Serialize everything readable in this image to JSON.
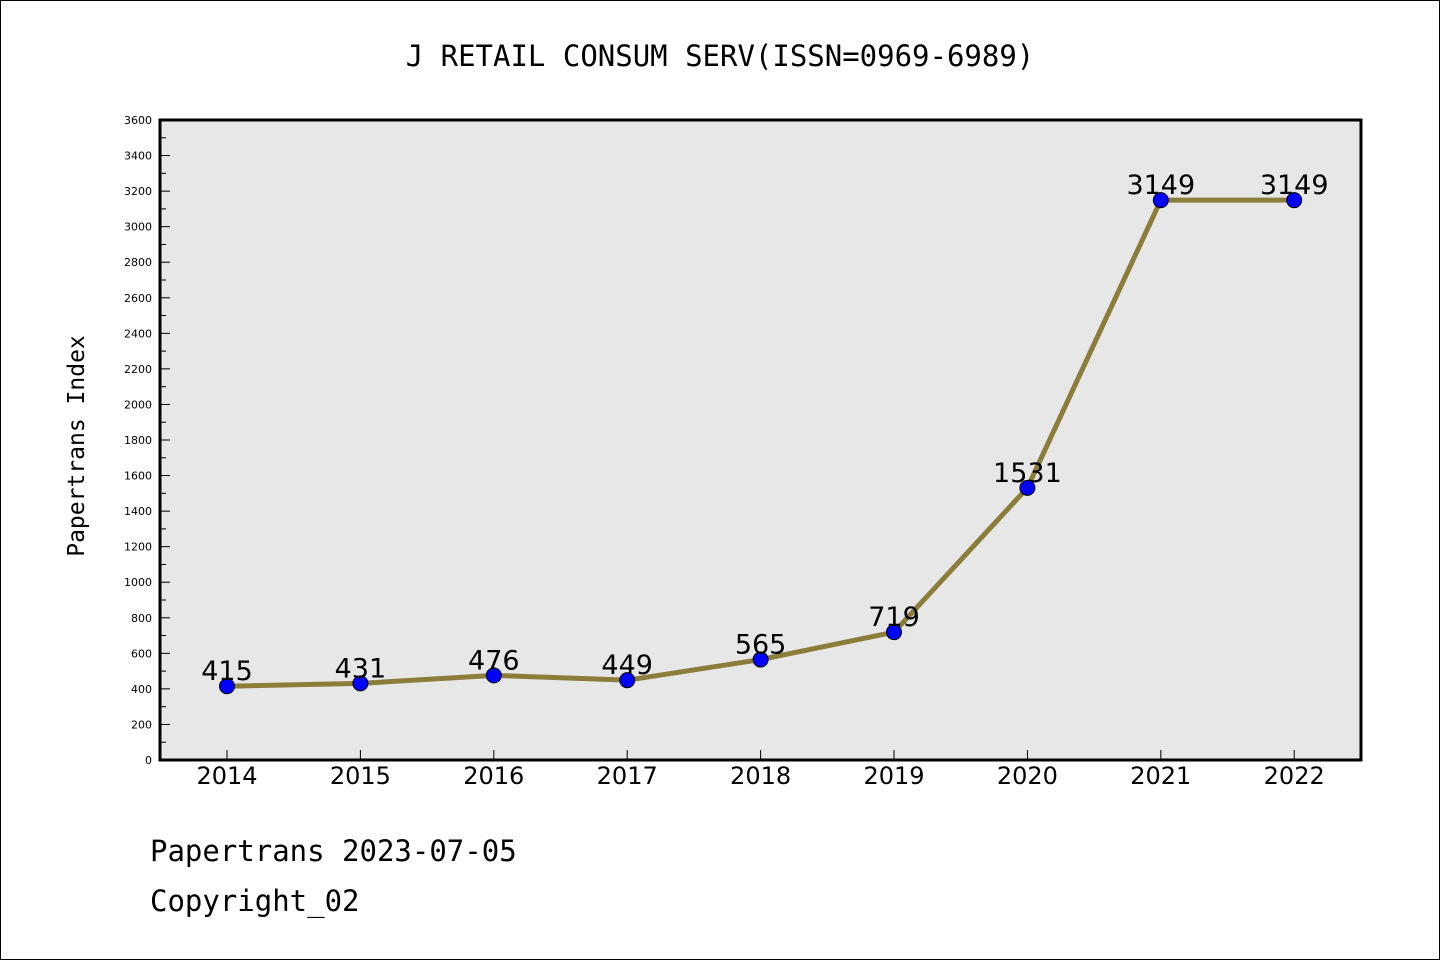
{
  "chart_data": {
    "type": "line",
    "title": "J RETAIL CONSUM SERV(ISSN=0969-6989)",
    "xlabel": "",
    "ylabel": "Papertrans Index",
    "categories": [
      "2014",
      "2015",
      "2016",
      "2017",
      "2018",
      "2019",
      "2020",
      "2021",
      "2022"
    ],
    "values": [
      415,
      431,
      476,
      449,
      565,
      719,
      1531,
      3149,
      3149
    ],
    "data_labels": [
      "415",
      "431",
      "476",
      "449",
      "565",
      "719",
      "1531",
      "3149",
      "3149"
    ],
    "ylim": [
      0,
      3600
    ],
    "y_ticks": [
      0,
      200,
      400,
      600,
      800,
      1000,
      1200,
      1400,
      1600,
      1800,
      2000,
      2200,
      2400,
      2600,
      2800,
      3000,
      3200,
      3400,
      3600
    ],
    "y_tick_labels": [
      "0",
      "200",
      "400",
      "600",
      "800",
      "1000",
      "1200",
      "1400",
      "1600",
      "1800",
      "2000",
      "2200",
      "2400",
      "2600",
      "2800",
      "3000",
      "3200",
      "3400",
      "3600"
    ],
    "grid": false,
    "legend": "none",
    "colors": {
      "line": "#8b7d3a",
      "marker": "#0000ff",
      "plot_background": "#e7e7e7"
    }
  },
  "footer": {
    "date_line": "Papertrans 2023-07-05",
    "copyright_line": "Copyright_02"
  }
}
